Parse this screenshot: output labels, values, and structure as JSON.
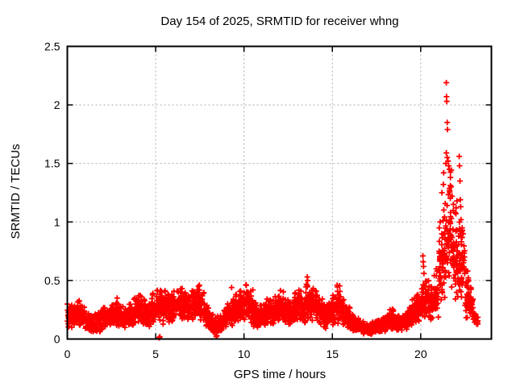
{
  "chart_data": {
    "type": "scatter",
    "title": "Day 154 of 2025, SRMTID for receiver whng",
    "xlabel": "GPS time / hours",
    "ylabel": "SRMTID / TECUs",
    "xlim": [
      0,
      24
    ],
    "ylim": [
      0,
      2.5
    ],
    "xticks": [
      0,
      5,
      10,
      15,
      20
    ],
    "yticks": [
      0,
      0.5,
      1,
      1.5,
      2,
      2.5
    ],
    "ytick_labels": [
      "0",
      "0.5",
      "1",
      "1.5",
      "2",
      "2.5"
    ],
    "grid": true,
    "legend": "none",
    "marker": "plus",
    "marker_color": "#ff0000",
    "grid_color": "#a8a8a8",
    "axis_color": "#000000",
    "background_color": "#ffffff",
    "seed": 7,
    "band_bin_width": 0.25,
    "band": [
      [
        0.0,
        0.1,
        0.3,
        32
      ],
      [
        0.25,
        0.08,
        0.28,
        32
      ],
      [
        0.5,
        0.1,
        0.33,
        32
      ],
      [
        0.75,
        0.1,
        0.28,
        32
      ],
      [
        1.0,
        0.06,
        0.22,
        32
      ],
      [
        1.25,
        0.04,
        0.2,
        32
      ],
      [
        1.5,
        0.05,
        0.22,
        32
      ],
      [
        1.75,
        0.06,
        0.24,
        32
      ],
      [
        2.0,
        0.08,
        0.28,
        32
      ],
      [
        2.25,
        0.08,
        0.26,
        32
      ],
      [
        2.5,
        0.1,
        0.3,
        32
      ],
      [
        2.75,
        0.1,
        0.32,
        32
      ],
      [
        3.0,
        0.1,
        0.28,
        32
      ],
      [
        3.25,
        0.08,
        0.26,
        32
      ],
      [
        3.5,
        0.1,
        0.3,
        32
      ],
      [
        3.75,
        0.12,
        0.36,
        32
      ],
      [
        4.0,
        0.12,
        0.38,
        32
      ],
      [
        4.25,
        0.1,
        0.34,
        32
      ],
      [
        4.5,
        0.1,
        0.3,
        32
      ],
      [
        4.75,
        0.12,
        0.4,
        32
      ],
      [
        5.0,
        0.12,
        0.43,
        32
      ],
      [
        5.25,
        0.12,
        0.42,
        32
      ],
      [
        5.5,
        0.15,
        0.42,
        32
      ],
      [
        5.75,
        0.14,
        0.38,
        32
      ],
      [
        6.0,
        0.15,
        0.42,
        32
      ],
      [
        6.25,
        0.16,
        0.44,
        32
      ],
      [
        6.5,
        0.15,
        0.4,
        32
      ],
      [
        6.75,
        0.14,
        0.38,
        32
      ],
      [
        7.0,
        0.15,
        0.42,
        32
      ],
      [
        7.25,
        0.18,
        0.46,
        32
      ],
      [
        7.5,
        0.14,
        0.4,
        32
      ],
      [
        7.75,
        0.1,
        0.3,
        32
      ],
      [
        8.0,
        0.06,
        0.22,
        32
      ],
      [
        8.25,
        0.03,
        0.18,
        32
      ],
      [
        8.5,
        0.05,
        0.2,
        32
      ],
      [
        8.75,
        0.08,
        0.25,
        32
      ],
      [
        9.0,
        0.1,
        0.3,
        32
      ],
      [
        9.25,
        0.1,
        0.34,
        32
      ],
      [
        9.5,
        0.12,
        0.38,
        32
      ],
      [
        9.75,
        0.14,
        0.42,
        32
      ],
      [
        10.0,
        0.15,
        0.47,
        32
      ],
      [
        10.25,
        0.12,
        0.42,
        32
      ],
      [
        10.5,
        0.09,
        0.32,
        32
      ],
      [
        10.75,
        0.09,
        0.3,
        32
      ],
      [
        11.0,
        0.1,
        0.3,
        32
      ],
      [
        11.25,
        0.12,
        0.35,
        32
      ],
      [
        11.5,
        0.1,
        0.33,
        32
      ],
      [
        11.75,
        0.14,
        0.38,
        32
      ],
      [
        12.0,
        0.15,
        0.42,
        32
      ],
      [
        12.25,
        0.12,
        0.35,
        32
      ],
      [
        12.5,
        0.1,
        0.32,
        32
      ],
      [
        12.75,
        0.14,
        0.4,
        32
      ],
      [
        13.0,
        0.15,
        0.43,
        32
      ],
      [
        13.25,
        0.1,
        0.35,
        32
      ],
      [
        13.5,
        0.14,
        0.47,
        32
      ],
      [
        13.75,
        0.14,
        0.44,
        32
      ],
      [
        14.0,
        0.12,
        0.42,
        32
      ],
      [
        14.25,
        0.1,
        0.35,
        32
      ],
      [
        14.5,
        0.08,
        0.3,
        32
      ],
      [
        14.75,
        0.1,
        0.32,
        32
      ],
      [
        15.0,
        0.1,
        0.38,
        32
      ],
      [
        15.25,
        0.12,
        0.46,
        32
      ],
      [
        15.5,
        0.1,
        0.34,
        32
      ],
      [
        15.75,
        0.08,
        0.28,
        32
      ],
      [
        16.0,
        0.06,
        0.22,
        32
      ],
      [
        16.25,
        0.05,
        0.18,
        32
      ],
      [
        16.5,
        0.04,
        0.15,
        32
      ],
      [
        16.75,
        0.04,
        0.13,
        32
      ],
      [
        17.0,
        0.04,
        0.13,
        32
      ],
      [
        17.25,
        0.05,
        0.15,
        32
      ],
      [
        17.5,
        0.05,
        0.16,
        32
      ],
      [
        17.75,
        0.06,
        0.18,
        32
      ],
      [
        18.0,
        0.07,
        0.22,
        32
      ],
      [
        18.25,
        0.08,
        0.26,
        32
      ],
      [
        18.5,
        0.06,
        0.2,
        32
      ],
      [
        18.75,
        0.07,
        0.2,
        32
      ],
      [
        19.0,
        0.08,
        0.22,
        32
      ],
      [
        19.25,
        0.1,
        0.28,
        32
      ],
      [
        19.5,
        0.12,
        0.35,
        32
      ],
      [
        19.75,
        0.14,
        0.38,
        32
      ],
      [
        20.0,
        0.16,
        0.48,
        32
      ],
      [
        20.25,
        0.16,
        0.52,
        32
      ],
      [
        20.5,
        0.15,
        0.45,
        32
      ],
      [
        20.75,
        0.18,
        0.55,
        32
      ],
      [
        21.0,
        0.25,
        0.9,
        34
      ],
      [
        21.25,
        0.3,
        1.2,
        36
      ],
      [
        21.5,
        0.35,
        1.5,
        36
      ],
      [
        21.75,
        0.3,
        1.1,
        34
      ],
      [
        22.0,
        0.25,
        1.0,
        34
      ],
      [
        22.25,
        0.28,
        0.95,
        34
      ],
      [
        22.5,
        0.15,
        0.6,
        30
      ],
      [
        22.75,
        0.12,
        0.45,
        28
      ],
      [
        23.0,
        0.1,
        0.22,
        16
      ]
    ],
    "outliers": [
      [
        2.82,
        0.35
      ],
      [
        5.2,
        0.01
      ],
      [
        5.24,
        0.02
      ],
      [
        8.43,
        0.02
      ],
      [
        8.46,
        0.03
      ],
      [
        9.3,
        0.44
      ],
      [
        13.58,
        0.53
      ],
      [
        13.6,
        0.5
      ],
      [
        15.27,
        0.46
      ],
      [
        20.12,
        0.71
      ],
      [
        20.14,
        0.66
      ],
      [
        20.16,
        0.62
      ],
      [
        20.18,
        0.56
      ],
      [
        20.88,
        0.6
      ],
      [
        20.92,
        0.58
      ],
      [
        21.05,
        0.95
      ],
      [
        21.1,
        1.0
      ],
      [
        21.2,
        1.25
      ],
      [
        21.28,
        1.32
      ],
      [
        21.3,
        1.42
      ],
      [
        21.42,
        1.5
      ],
      [
        21.45,
        1.59
      ],
      [
        21.45,
        2.19
      ],
      [
        21.46,
        2.07
      ],
      [
        21.47,
        2.03
      ],
      [
        21.5,
        1.85
      ],
      [
        21.5,
        1.55
      ],
      [
        21.52,
        1.79
      ],
      [
        21.55,
        1.52
      ],
      [
        21.58,
        1.48
      ],
      [
        21.62,
        1.45
      ],
      [
        21.68,
        1.38
      ],
      [
        21.72,
        1.3
      ],
      [
        21.78,
        1.22
      ],
      [
        21.85,
        1.15
      ],
      [
        21.95,
        1.08
      ],
      [
        22.0,
        1.12
      ],
      [
        22.05,
        1.18
      ],
      [
        22.18,
        1.56
      ],
      [
        22.2,
        1.48
      ],
      [
        22.22,
        1.35
      ],
      [
        22.24,
        1.19
      ],
      [
        22.26,
        1.13
      ],
      [
        22.28,
        1.02
      ],
      [
        22.35,
        0.95
      ],
      [
        22.4,
        0.9
      ]
    ]
  }
}
